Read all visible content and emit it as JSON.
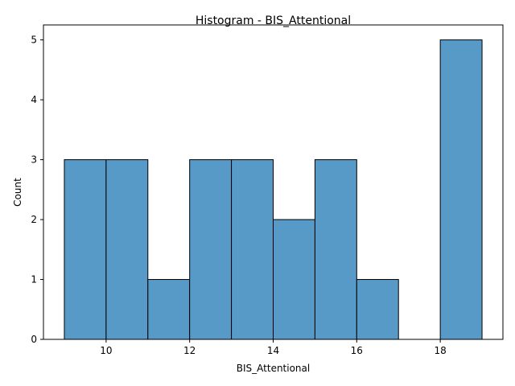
{
  "chart_data": {
    "type": "bar",
    "title": "Histogram - BIS_Attentional",
    "xlabel": "BIS_Attentional",
    "ylabel": "Count",
    "bins": [
      {
        "x0": 9,
        "x1": 10,
        "count": 3
      },
      {
        "x0": 10,
        "x1": 11,
        "count": 3
      },
      {
        "x0": 11,
        "x1": 12,
        "count": 1
      },
      {
        "x0": 12,
        "x1": 13,
        "count": 3
      },
      {
        "x0": 13,
        "x1": 14,
        "count": 3
      },
      {
        "x0": 14,
        "x1": 15,
        "count": 2
      },
      {
        "x0": 15,
        "x1": 16,
        "count": 3
      },
      {
        "x0": 16,
        "x1": 17,
        "count": 1
      },
      {
        "x0": 17,
        "x1": 18,
        "count": 0
      },
      {
        "x0": 18,
        "x1": 19,
        "count": 5
      }
    ],
    "xlim": [
      8.5,
      19.5
    ],
    "ylim": [
      0,
      5.25
    ],
    "xticks": [
      10,
      12,
      14,
      16,
      18
    ],
    "yticks": [
      0,
      1,
      2,
      3,
      4,
      5
    ],
    "grid": false,
    "colors": {
      "bar_fill": "#5799c7",
      "bar_edge": "#000000",
      "axis": "#000000"
    }
  }
}
